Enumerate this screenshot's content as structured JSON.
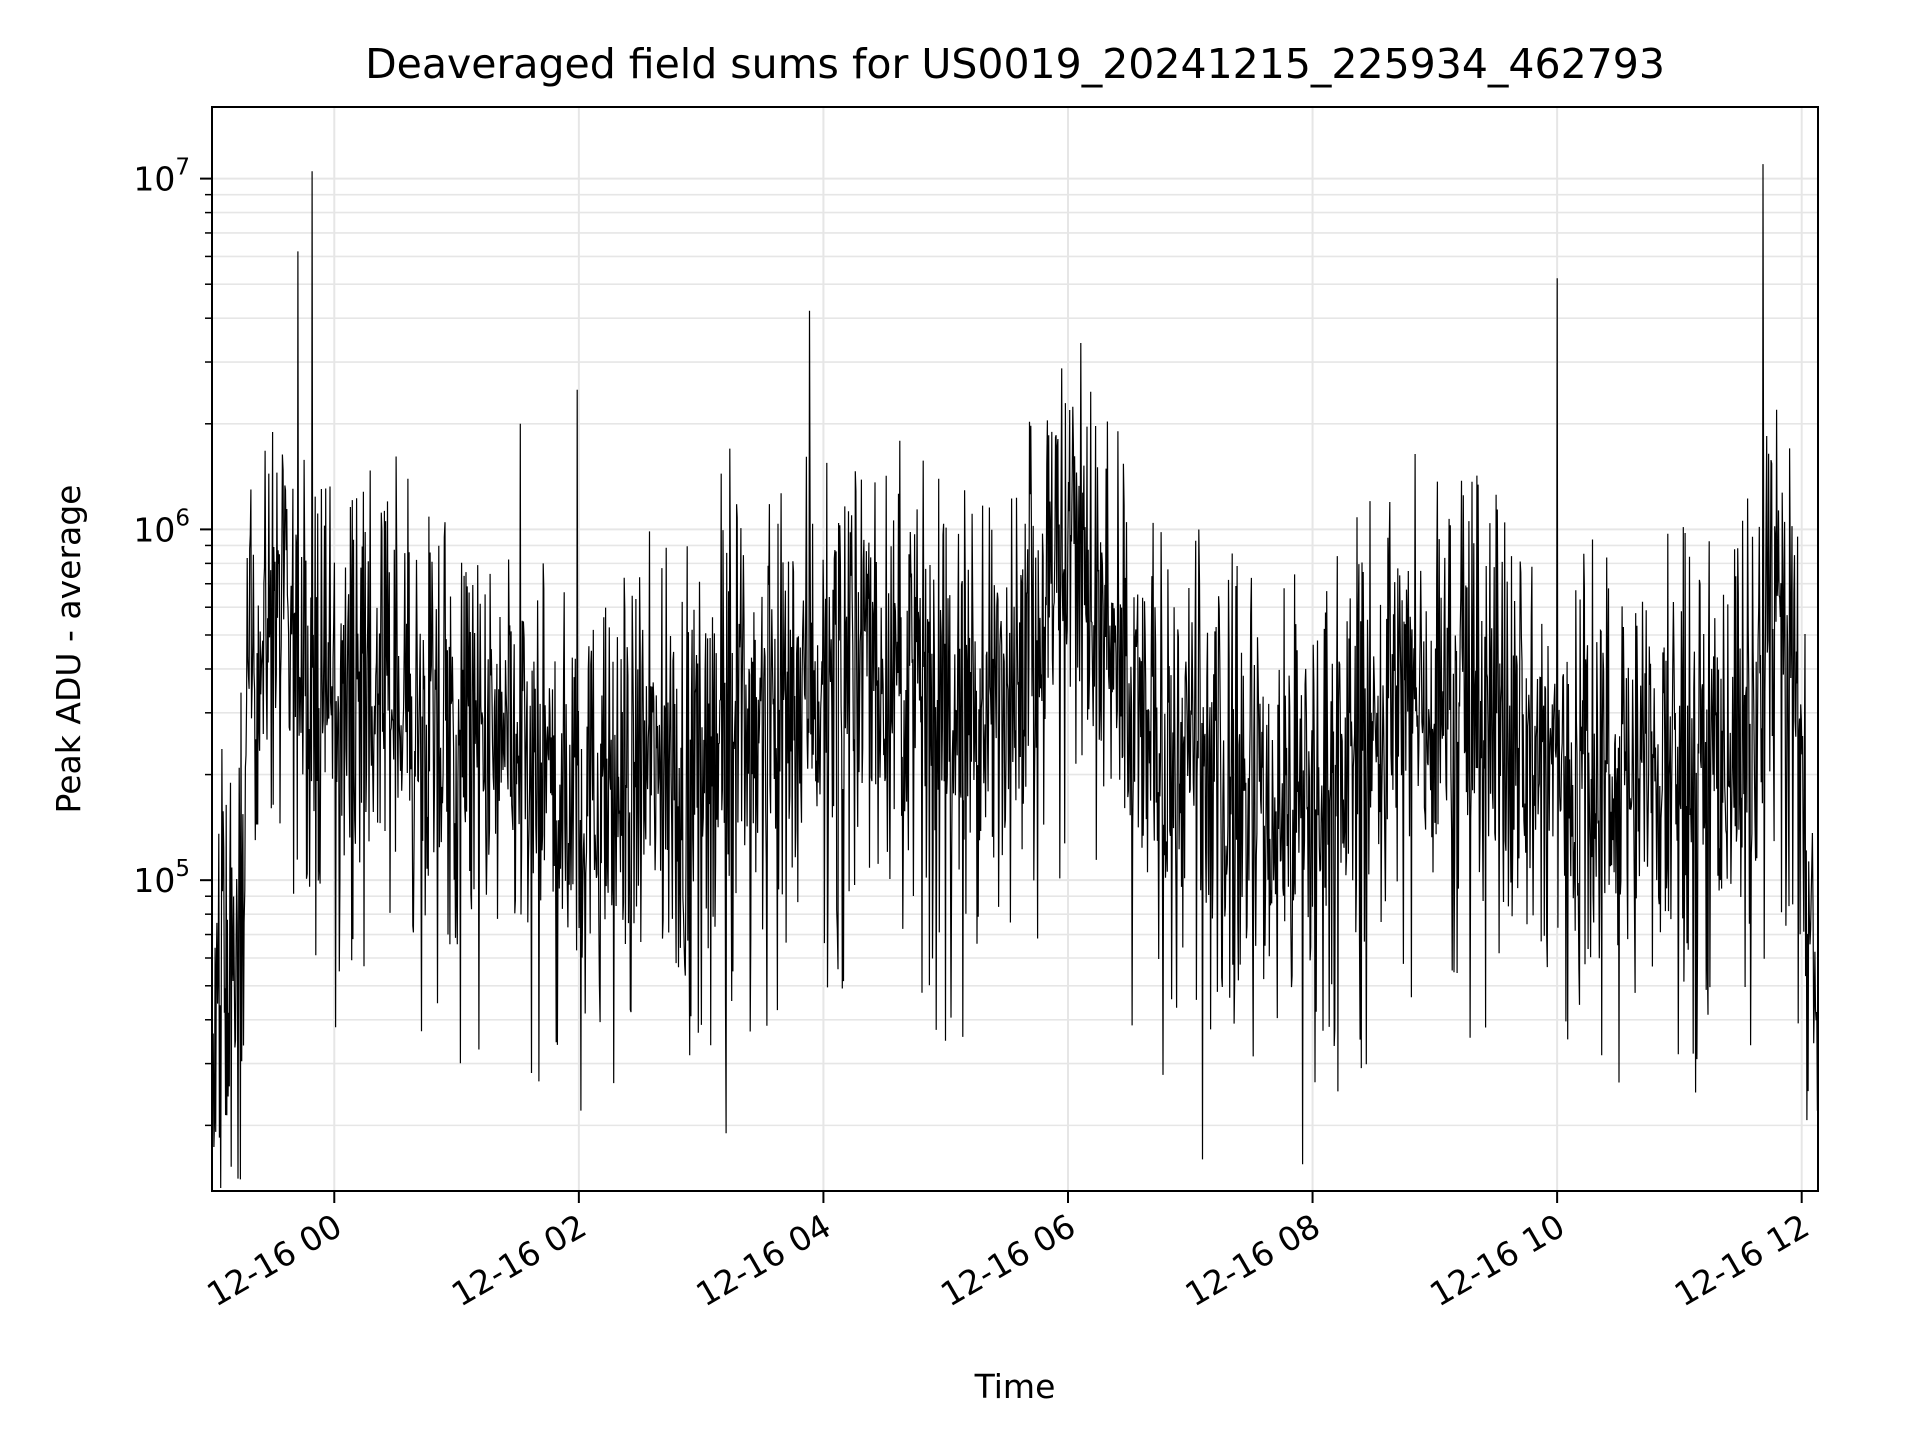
{
  "chart_data": {
    "type": "line",
    "title": "Deaveraged field sums for US0019_20241215_225934_462793",
    "xlabel": "Time",
    "ylabel": "Peak ADU - average",
    "y_scale": "log",
    "ylim": [
      13000,
      16000000
    ],
    "xlim": [
      "2024-12-15 23:00",
      "2024-12-16 12:08"
    ],
    "grid": true,
    "line_color": "#000000",
    "grid_color": "#e6e6e6",
    "x_ticks": [
      {
        "value": "2024-12-16 00:00",
        "label": "12-16 00"
      },
      {
        "value": "2024-12-16 02:00",
        "label": "12-16 02"
      },
      {
        "value": "2024-12-16 04:00",
        "label": "12-16 04"
      },
      {
        "value": "2024-12-16 06:00",
        "label": "12-16 06"
      },
      {
        "value": "2024-12-16 08:00",
        "label": "12-16 08"
      },
      {
        "value": "2024-12-16 10:00",
        "label": "12-16 10"
      },
      {
        "value": "2024-12-16 12:00",
        "label": "12-16 12"
      }
    ],
    "y_ticks": [
      {
        "value": 100000,
        "base": "10",
        "exp": "5"
      },
      {
        "value": 1000000,
        "base": "10",
        "exp": "6"
      },
      {
        "value": 10000000,
        "base": "10",
        "exp": "7"
      }
    ],
    "series": [
      {
        "x": [
          "2024-12-15 23:00",
          "2024-12-15 23:05",
          "2024-12-15 23:10",
          "2024-12-15 23:15",
          "2024-12-15 23:20",
          "2024-12-15 23:25",
          "2024-12-15 23:30",
          "2024-12-15 23:35",
          "2024-12-15 23:40",
          "2024-12-15 23:45",
          "2024-12-15 23:50",
          "2024-12-15 23:55",
          "2024-12-16 00:00",
          "2024-12-16 00:10",
          "2024-12-16 00:20",
          "2024-12-16 00:30",
          "2024-12-16 00:40",
          "2024-12-16 00:50",
          "2024-12-16 01:00",
          "2024-12-16 01:10",
          "2024-12-16 01:20",
          "2024-12-16 01:30",
          "2024-12-16 01:40",
          "2024-12-16 01:50",
          "2024-12-16 02:00",
          "2024-12-16 02:10",
          "2024-12-16 02:20",
          "2024-12-16 02:30",
          "2024-12-16 02:40",
          "2024-12-16 02:50",
          "2024-12-16 03:00",
          "2024-12-16 03:10",
          "2024-12-16 03:20",
          "2024-12-16 03:30",
          "2024-12-16 03:40",
          "2024-12-16 03:50",
          "2024-12-16 04:00",
          "2024-12-16 04:10",
          "2024-12-16 04:20",
          "2024-12-16 04:30",
          "2024-12-16 04:40",
          "2024-12-16 04:50",
          "2024-12-16 05:00",
          "2024-12-16 05:10",
          "2024-12-16 05:20",
          "2024-12-16 05:30",
          "2024-12-16 05:40",
          "2024-12-16 05:50",
          "2024-12-16 06:00",
          "2024-12-16 06:05",
          "2024-12-16 06:10",
          "2024-12-16 06:20",
          "2024-12-16 06:30",
          "2024-12-16 06:40",
          "2024-12-16 06:50",
          "2024-12-16 07:00",
          "2024-12-16 07:10",
          "2024-12-16 07:20",
          "2024-12-16 07:30",
          "2024-12-16 07:40",
          "2024-12-16 07:50",
          "2024-12-16 08:00",
          "2024-12-16 08:10",
          "2024-12-16 08:20",
          "2024-12-16 08:30",
          "2024-12-16 08:40",
          "2024-12-16 08:50",
          "2024-12-16 09:00",
          "2024-12-16 09:10",
          "2024-12-16 09:20",
          "2024-12-16 09:30",
          "2024-12-16 09:40",
          "2024-12-16 09:50",
          "2024-12-16 10:00",
          "2024-12-16 10:10",
          "2024-12-16 10:20",
          "2024-12-16 10:30",
          "2024-12-16 10:40",
          "2024-12-16 10:50",
          "2024-12-16 11:00",
          "2024-12-16 11:10",
          "2024-12-16 11:20",
          "2024-12-16 11:30",
          "2024-12-16 11:40",
          "2024-12-16 11:45",
          "2024-12-16 11:50",
          "2024-12-16 11:55",
          "2024-12-16 12:00",
          "2024-12-16 12:05",
          "2024-12-16 12:08"
        ],
        "values": [
          20000,
          60000,
          45000,
          110000,
          450000,
          500000,
          550000,
          480000,
          420000,
          400000,
          380000,
          350000,
          320000,
          300000,
          330000,
          340000,
          260000,
          250000,
          270000,
          230000,
          220000,
          200000,
          190000,
          180000,
          170000,
          160000,
          180000,
          210000,
          200000,
          170000,
          250000,
          300000,
          320000,
          280000,
          350000,
          400000,
          380000,
          420000,
          450000,
          400000,
          380000,
          330000,
          300000,
          260000,
          300000,
          380000,
          500000,
          700000,
          1000000,
          900000,
          700000,
          400000,
          300000,
          250000,
          230000,
          220000,
          200000,
          180000,
          170000,
          150000,
          160000,
          180000,
          200000,
          220000,
          260000,
          300000,
          340000,
          330000,
          320000,
          300000,
          260000,
          240000,
          220000,
          200000,
          210000,
          220000,
          210000,
          200000,
          190000,
          200000,
          220000,
          240000,
          250000,
          300000,
          500000,
          600000,
          500000,
          150000,
          50000,
          30000
        ]
      }
    ],
    "annotations": [
      {
        "x": "2024-12-15 23:42",
        "y": 6200000
      },
      {
        "x": "2024-12-15 23:49",
        "y": 10500000
      },
      {
        "x": "2024-12-16 01:31",
        "y": 2000000
      },
      {
        "x": "2024-12-16 01:59",
        "y": 2500000
      },
      {
        "x": "2024-12-16 03:53",
        "y": 4200000
      },
      {
        "x": "2024-12-16 06:06",
        "y": 3400000
      },
      {
        "x": "2024-12-16 10:00",
        "y": 5200000
      },
      {
        "x": "2024-12-16 11:41",
        "y": 11000000
      },
      {
        "x": "2024-12-16 03:12",
        "y": 19000
      },
      {
        "x": "2024-12-16 07:06",
        "y": 16000
      },
      {
        "x": "2024-12-16 07:55",
        "y": 15500
      }
    ]
  }
}
